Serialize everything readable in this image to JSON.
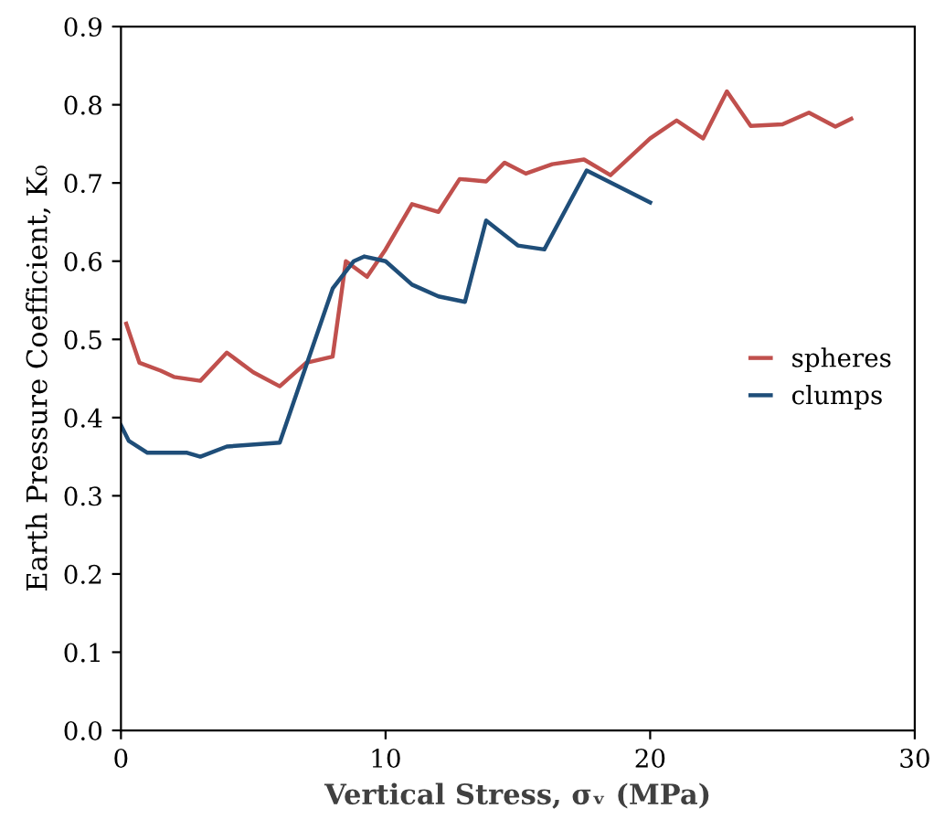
{
  "chart_data": {
    "type": "line",
    "xlabel": "Vertical Stress, σᵥ (MPa)",
    "ylabel": "Earth Pressure Coefficient, K₀",
    "xlim": [
      0,
      30
    ],
    "xticks": [
      0,
      10,
      20,
      30
    ],
    "ylim": [
      0,
      0.9
    ],
    "yticks": [
      {
        "value": 0,
        "label": "0.0"
      },
      0.1,
      0.2,
      0.3,
      0.4,
      0.5,
      0.6,
      0.7,
      0.8,
      0.9
    ],
    "grid": false,
    "legend": "right",
    "marker": "none",
    "line_style": "solid",
    "series": [
      {
        "name": "spheres",
        "color": "#c0504d",
        "x": [
          0.2,
          0.7,
          1.5,
          2,
          3,
          4,
          5,
          6,
          7,
          8,
          8.5,
          9.3,
          10,
          11,
          12,
          12.8,
          13.8,
          14.5,
          15.3,
          16.3,
          17.5,
          18.5,
          20,
          21,
          22,
          22.9,
          23.8,
          25,
          26,
          27,
          27.6
        ],
        "values": [
          0.52,
          0.47,
          0.46,
          0.452,
          0.447,
          0.483,
          0.458,
          0.44,
          0.47,
          0.478,
          0.6,
          0.58,
          0.615,
          0.673,
          0.663,
          0.705,
          0.702,
          0.726,
          0.712,
          0.724,
          0.73,
          0.71,
          0.757,
          0.78,
          0.757,
          0.817,
          0.773,
          0.775,
          0.79,
          0.772,
          0.782
        ]
      },
      {
        "name": "clumps",
        "color": "#1f4e79",
        "x": [
          0,
          0.3,
          1,
          2.5,
          3,
          4,
          6,
          8,
          8.8,
          9.2,
          10,
          11,
          12,
          13,
          13.8,
          15,
          16,
          17.6,
          20
        ],
        "values": [
          0.39,
          0.37,
          0.355,
          0.355,
          0.35,
          0.363,
          0.368,
          0.565,
          0.6,
          0.606,
          0.6,
          0.57,
          0.555,
          0.548,
          0.652,
          0.62,
          0.615,
          0.716,
          0.675
        ]
      }
    ]
  }
}
